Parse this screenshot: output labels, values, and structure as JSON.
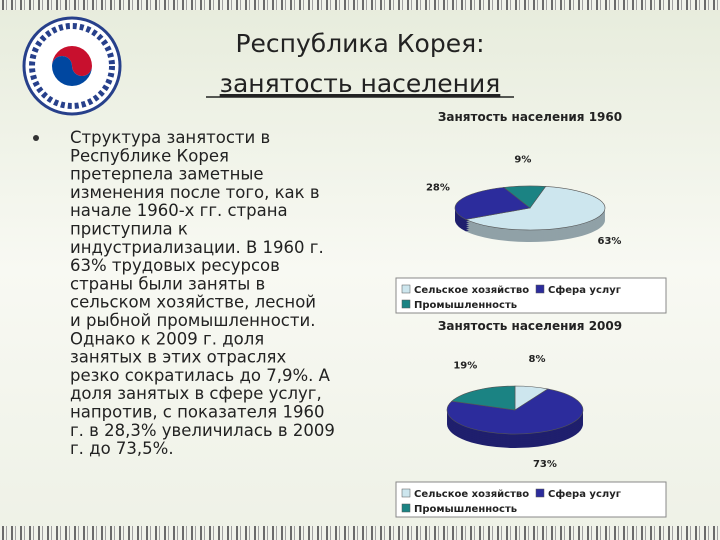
{
  "slide": {
    "title": [
      "Республика Корея:",
      "занятость населения"
    ],
    "bullet": [
      "Структура занятости в",
      "Республике Корея",
      "претерпела заметные",
      "изменения после того, как в",
      "начале 1960-х гг. страна",
      "приступила к",
      "индустриализации. В 1960 г.",
      "63% трудовых ресурсов",
      "страны были заняты в",
      "сельском хозяйстве, лесной",
      "и рыбной промышленности.",
      "Однако к 2009 г. доля",
      "занятых в этих отраслях",
      "резко сократилась до 7,9%. А",
      "доля занятых в сфере услуг,",
      "напротив, с показателя 1960",
      "г. в 28,3% увеличилась в 2009",
      "г. до 73,5%."
    ]
  },
  "chart_data": [
    {
      "type": "pie",
      "title": "Занятость населения 1960",
      "categories": [
        "Сельское хозяйство",
        "Сфера услуг",
        "Промышленность"
      ],
      "values": [
        63,
        28,
        9
      ],
      "value_labels": [
        "63%",
        "28%",
        "9%"
      ],
      "colors": [
        "#cde6ee",
        "#2c2c9c",
        "#1b8383"
      ],
      "legend": "bottom"
    },
    {
      "type": "pie",
      "title": "Занятость населения 2009",
      "categories": [
        "Сельское хозяйство",
        "Сфера услуг",
        "Промышленность"
      ],
      "values": [
        8,
        73,
        19
      ],
      "value_labels": [
        "8%",
        "73%",
        "19%"
      ],
      "colors": [
        "#cde6ee",
        "#2c2c9c",
        "#1b8383"
      ],
      "legend": "bottom"
    }
  ]
}
